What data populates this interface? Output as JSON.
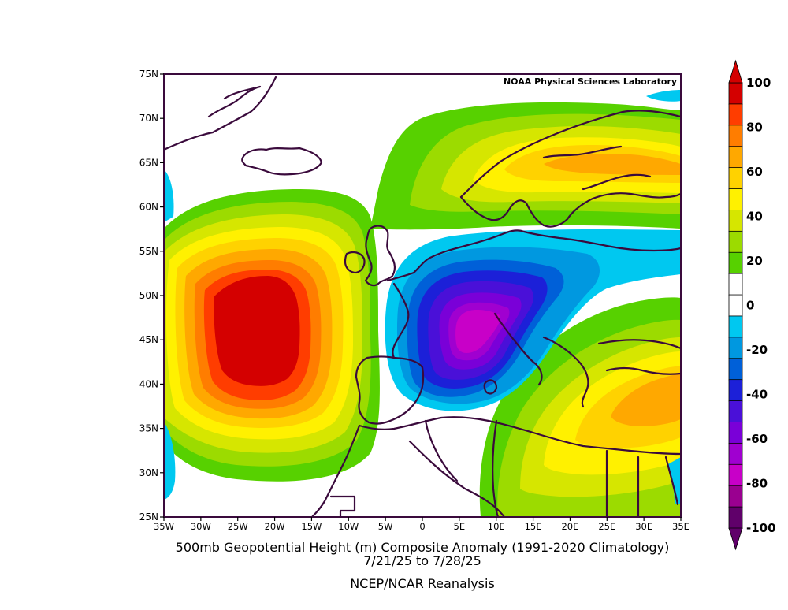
{
  "map": {
    "credit": "NOAA Physical Sciences Laboratory",
    "title_line1": "500mb Geopotential Height (m) Composite Anomaly (1991-2020 Climatology)",
    "title_line2": "7/21/25   to 7/28/25",
    "title_line3": "NCEP/NCAR Reanalysis",
    "lat_labels": [
      "75N",
      "70N",
      "65N",
      "60N",
      "55N",
      "50N",
      "45N",
      "40N",
      "35N",
      "30N",
      "25N"
    ],
    "lon_labels": [
      "35W",
      "30W",
      "25W",
      "20W",
      "15W",
      "10W",
      "5W",
      "0",
      "5E",
      "10E",
      "15E",
      "20E",
      "25E",
      "30E",
      "35E"
    ]
  },
  "colorbar": {
    "labels": [
      "100",
      "80",
      "60",
      "40",
      "20",
      "0",
      "-20",
      "-40",
      "-60",
      "-80",
      "-100"
    ],
    "colors": [
      "#d40000",
      "#ff3d00",
      "#ff7d00",
      "#ffa800",
      "#ffd200",
      "#fff100",
      "#d6e600",
      "#9cdb00",
      "#57d100",
      "#ffffff",
      "#ffffff",
      "#00c8f0",
      "#0098e0",
      "#0060d8",
      "#1c20d8",
      "#4a10d8",
      "#7a00d8",
      "#a000d0",
      "#c800c8",
      "#9a0090",
      "#60006a"
    ]
  },
  "anomaly_centers": [
    {
      "name": "ridge-atlantic",
      "lon": -22,
      "lat": 48,
      "value": 100
    },
    {
      "name": "trough-france",
      "lon": 5,
      "lat": 47,
      "value": -80
    },
    {
      "name": "ridge-scandinavia",
      "lon": 15,
      "lat": 66,
      "value": 50
    },
    {
      "name": "ridge-mediterranean",
      "lon": 25,
      "lat": 38,
      "value": 50
    }
  ]
}
